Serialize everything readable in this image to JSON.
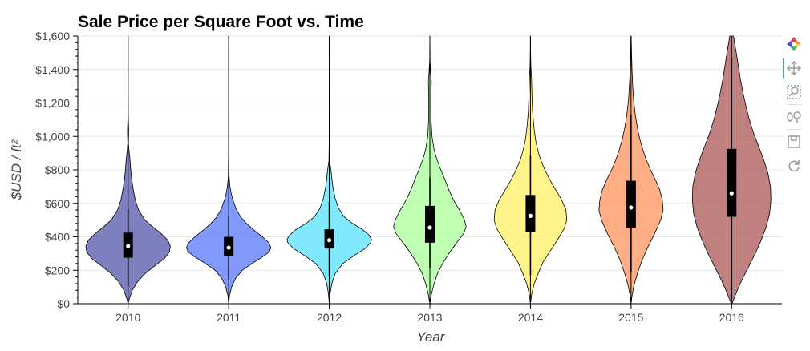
{
  "chart_data": {
    "type": "violin",
    "title": "Sale Price per Square Foot vs. Time",
    "xlabel": "Year",
    "ylabel": "$USD / ft²",
    "ylim": [
      0,
      1600
    ],
    "yticks": [
      {
        "value": 0,
        "label": "$0"
      },
      {
        "value": 200,
        "label": "$200"
      },
      {
        "value": 400,
        "label": "$400"
      },
      {
        "value": 600,
        "label": "$600"
      },
      {
        "value": 800,
        "label": "$800"
      },
      {
        "value": 1000,
        "label": "$1,000"
      },
      {
        "value": 1200,
        "label": "$1,200"
      },
      {
        "value": 1400,
        "label": "$1,400"
      },
      {
        "value": 1600,
        "label": "$1,600"
      }
    ],
    "grid": true,
    "categories": [
      "2010",
      "2011",
      "2012",
      "2013",
      "2014",
      "2015",
      "2016"
    ],
    "violins": [
      {
        "category": "2010",
        "color": "#6B6DB5",
        "q1": 275,
        "median": 345,
        "q3": 425,
        "whisker_low": 105,
        "whisker_high": 565,
        "line_top": 1600,
        "density": [
          [
            0,
            0
          ],
          [
            30,
            0.03
          ],
          [
            80,
            0.1
          ],
          [
            130,
            0.22
          ],
          [
            180,
            0.4
          ],
          [
            230,
            0.65
          ],
          [
            270,
            0.86
          ],
          [
            310,
            0.98
          ],
          [
            345,
            1.0
          ],
          [
            380,
            0.94
          ],
          [
            420,
            0.78
          ],
          [
            460,
            0.58
          ],
          [
            500,
            0.4
          ],
          [
            560,
            0.25
          ],
          [
            620,
            0.17
          ],
          [
            700,
            0.11
          ],
          [
            780,
            0.07
          ],
          [
            860,
            0.045
          ],
          [
            920,
            0.02
          ],
          [
            960,
            0.008
          ],
          [
            1000,
            0.012
          ],
          [
            1040,
            0.015
          ],
          [
            1080,
            0.009
          ],
          [
            1140,
            0.003
          ],
          [
            1300,
            0.001
          ],
          [
            1600,
            0.0006
          ]
        ]
      },
      {
        "category": "2011",
        "color": "#6E8BFA",
        "q1": 285,
        "median": 335,
        "q3": 400,
        "whisker_low": 140,
        "whisker_high": 520,
        "line_top": 1600,
        "density": [
          [
            0,
            0
          ],
          [
            50,
            0.02
          ],
          [
            100,
            0.07
          ],
          [
            150,
            0.16
          ],
          [
            200,
            0.32
          ],
          [
            240,
            0.55
          ],
          [
            280,
            0.8
          ],
          [
            310,
            0.96
          ],
          [
            335,
            1.0
          ],
          [
            365,
            0.95
          ],
          [
            400,
            0.8
          ],
          [
            440,
            0.6
          ],
          [
            480,
            0.42
          ],
          [
            520,
            0.28
          ],
          [
            570,
            0.17
          ],
          [
            620,
            0.1
          ],
          [
            660,
            0.06
          ],
          [
            700,
            0.03
          ],
          [
            760,
            0.01
          ],
          [
            900,
            0.003
          ],
          [
            1600,
            0.0006
          ]
        ]
      },
      {
        "category": "2012",
        "color": "#6EE6FF",
        "q1": 330,
        "median": 380,
        "q3": 445,
        "whisker_low": 160,
        "whisker_high": 610,
        "line_top": 1600,
        "density": [
          [
            0,
            0
          ],
          [
            60,
            0.02
          ],
          [
            120,
            0.06
          ],
          [
            180,
            0.14
          ],
          [
            240,
            0.32
          ],
          [
            290,
            0.6
          ],
          [
            330,
            0.85
          ],
          [
            365,
            0.98
          ],
          [
            385,
            1.0
          ],
          [
            410,
            0.94
          ],
          [
            445,
            0.78
          ],
          [
            480,
            0.55
          ],
          [
            520,
            0.35
          ],
          [
            570,
            0.22
          ],
          [
            630,
            0.14
          ],
          [
            690,
            0.09
          ],
          [
            750,
            0.06
          ],
          [
            800,
            0.04
          ],
          [
            850,
            0.01
          ],
          [
            950,
            0.003
          ],
          [
            1600,
            0.0006
          ]
        ]
      },
      {
        "category": "2013",
        "color": "#B5FFA8",
        "q1": 365,
        "median": 455,
        "q3": 585,
        "whisker_low": 215,
        "whisker_high": 755,
        "line_top": 1600,
        "density": [
          [
            0,
            0
          ],
          [
            60,
            0.04
          ],
          [
            120,
            0.1
          ],
          [
            180,
            0.18
          ],
          [
            240,
            0.3
          ],
          [
            300,
            0.45
          ],
          [
            360,
            0.62
          ],
          [
            420,
            0.8
          ],
          [
            460,
            0.86
          ],
          [
            500,
            0.82
          ],
          [
            560,
            0.7
          ],
          [
            620,
            0.56
          ],
          [
            680,
            0.45
          ],
          [
            740,
            0.36
          ],
          [
            800,
            0.26
          ],
          [
            860,
            0.17
          ],
          [
            920,
            0.1
          ],
          [
            1000,
            0.05
          ],
          [
            1100,
            0.03
          ],
          [
            1200,
            0.025
          ],
          [
            1280,
            0.03
          ],
          [
            1330,
            0.035
          ],
          [
            1380,
            0.02
          ],
          [
            1450,
            0.005
          ],
          [
            1600,
            0.0006
          ]
        ]
      },
      {
        "category": "2014",
        "color": "#FFF27A",
        "q1": 430,
        "median": 525,
        "q3": 650,
        "whisker_low": 170,
        "whisker_high": 885,
        "line_top": 1600,
        "density": [
          [
            0,
            0
          ],
          [
            60,
            0.03
          ],
          [
            120,
            0.09
          ],
          [
            180,
            0.18
          ],
          [
            250,
            0.3
          ],
          [
            320,
            0.48
          ],
          [
            390,
            0.66
          ],
          [
            450,
            0.8
          ],
          [
            500,
            0.86
          ],
          [
            560,
            0.84
          ],
          [
            620,
            0.74
          ],
          [
            680,
            0.6
          ],
          [
            740,
            0.46
          ],
          [
            800,
            0.34
          ],
          [
            860,
            0.24
          ],
          [
            920,
            0.17
          ],
          [
            980,
            0.12
          ],
          [
            1060,
            0.08
          ],
          [
            1150,
            0.05
          ],
          [
            1250,
            0.035
          ],
          [
            1350,
            0.025
          ],
          [
            1420,
            0.01
          ],
          [
            1500,
            0.003
          ],
          [
            1600,
            0.0006
          ]
        ]
      },
      {
        "category": "2015",
        "color": "#FFA274",
        "q1": 455,
        "median": 575,
        "q3": 735,
        "whisker_low": 190,
        "whisker_high": 1130,
        "line_top": 1600,
        "density": [
          [
            0,
            0
          ],
          [
            60,
            0.03
          ],
          [
            120,
            0.08
          ],
          [
            180,
            0.15
          ],
          [
            260,
            0.26
          ],
          [
            340,
            0.4
          ],
          [
            420,
            0.56
          ],
          [
            500,
            0.7
          ],
          [
            560,
            0.76
          ],
          [
            620,
            0.74
          ],
          [
            680,
            0.68
          ],
          [
            740,
            0.58
          ],
          [
            800,
            0.46
          ],
          [
            860,
            0.36
          ],
          [
            920,
            0.28
          ],
          [
            980,
            0.21
          ],
          [
            1050,
            0.15
          ],
          [
            1130,
            0.1
          ],
          [
            1220,
            0.06
          ],
          [
            1320,
            0.035
          ],
          [
            1420,
            0.02
          ],
          [
            1520,
            0.01
          ],
          [
            1600,
            0.003
          ]
        ]
      },
      {
        "category": "2016",
        "color": "#B86E6E",
        "q1": 520,
        "median": 660,
        "q3": 925,
        "whisker_low": 30,
        "whisker_high": 1465,
        "line_top": 1600,
        "density": [
          [
            0,
            0.01
          ],
          [
            60,
            0.1
          ],
          [
            140,
            0.24
          ],
          [
            220,
            0.4
          ],
          [
            300,
            0.56
          ],
          [
            380,
            0.7
          ],
          [
            460,
            0.82
          ],
          [
            540,
            0.9
          ],
          [
            620,
            0.93
          ],
          [
            700,
            0.92
          ],
          [
            780,
            0.86
          ],
          [
            860,
            0.76
          ],
          [
            940,
            0.64
          ],
          [
            1020,
            0.52
          ],
          [
            1100,
            0.42
          ],
          [
            1180,
            0.34
          ],
          [
            1260,
            0.27
          ],
          [
            1340,
            0.21
          ],
          [
            1420,
            0.16
          ],
          [
            1500,
            0.11
          ],
          [
            1560,
            0.07
          ],
          [
            1600,
            0.045
          ]
        ]
      }
    ]
  },
  "toolbar": {
    "tools": [
      {
        "name": "bokeh-logo-icon"
      },
      {
        "name": "pan-tool-icon"
      },
      {
        "name": "box-zoom-tool-icon"
      },
      {
        "name": "wheel-zoom-tool-icon"
      },
      {
        "name": "save-tool-icon"
      },
      {
        "name": "reset-tool-icon"
      }
    ]
  }
}
